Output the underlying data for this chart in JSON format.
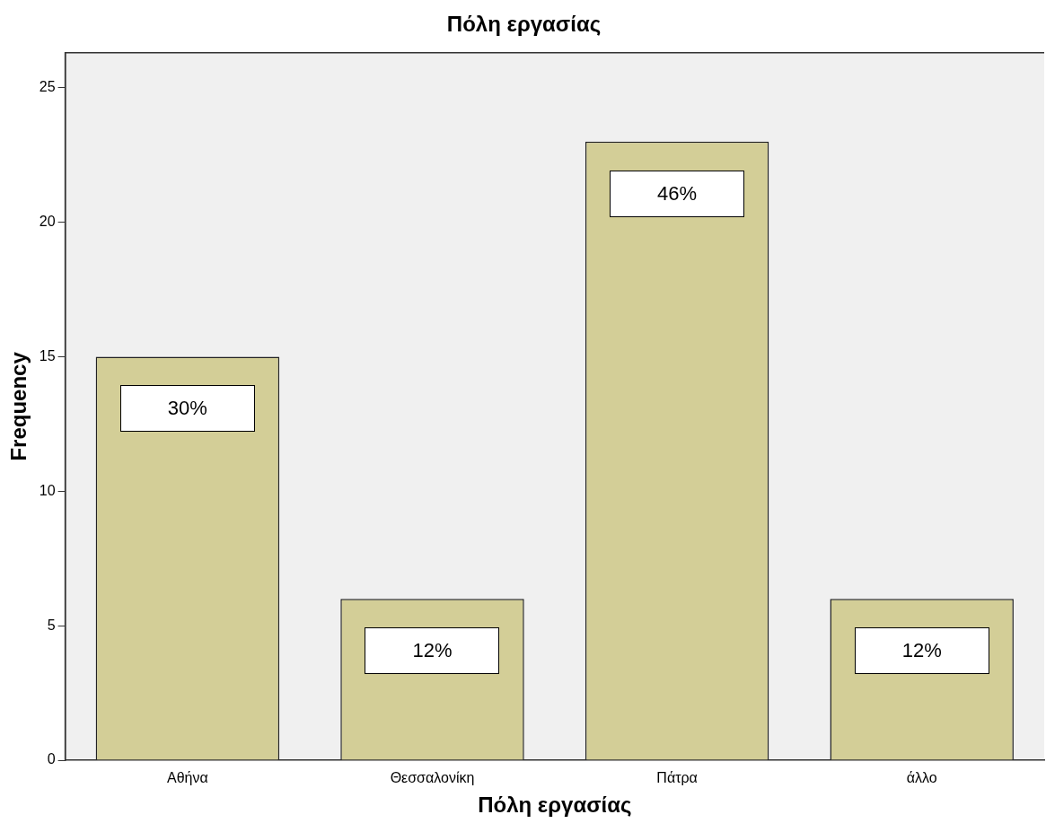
{
  "chart_data": {
    "type": "bar",
    "title": "Πόλη εργασίας",
    "xlabel": "Πόλη εργασίας",
    "ylabel": "Frequency",
    "categories": [
      "Αθήνα",
      "Θεσσαλονίκη",
      "Πάτρα",
      "άλλο"
    ],
    "values": [
      15,
      6,
      23,
      6
    ],
    "annotations": [
      {
        "text": "30%",
        "x": "Αθήνα",
        "y": 15
      },
      {
        "text": "12%",
        "x": "Θεσσαλονίκη",
        "y": 6
      },
      {
        "text": "46%",
        "x": "Πάτρα",
        "y": 23
      },
      {
        "text": "12%",
        "x": "άλλο",
        "y": 6
      }
    ],
    "color": "#d3ce97",
    "ylim": [
      0,
      26.3
    ],
    "yticks": [
      0,
      5,
      10,
      15,
      20,
      25
    ],
    "grid": false,
    "legend": false
  }
}
